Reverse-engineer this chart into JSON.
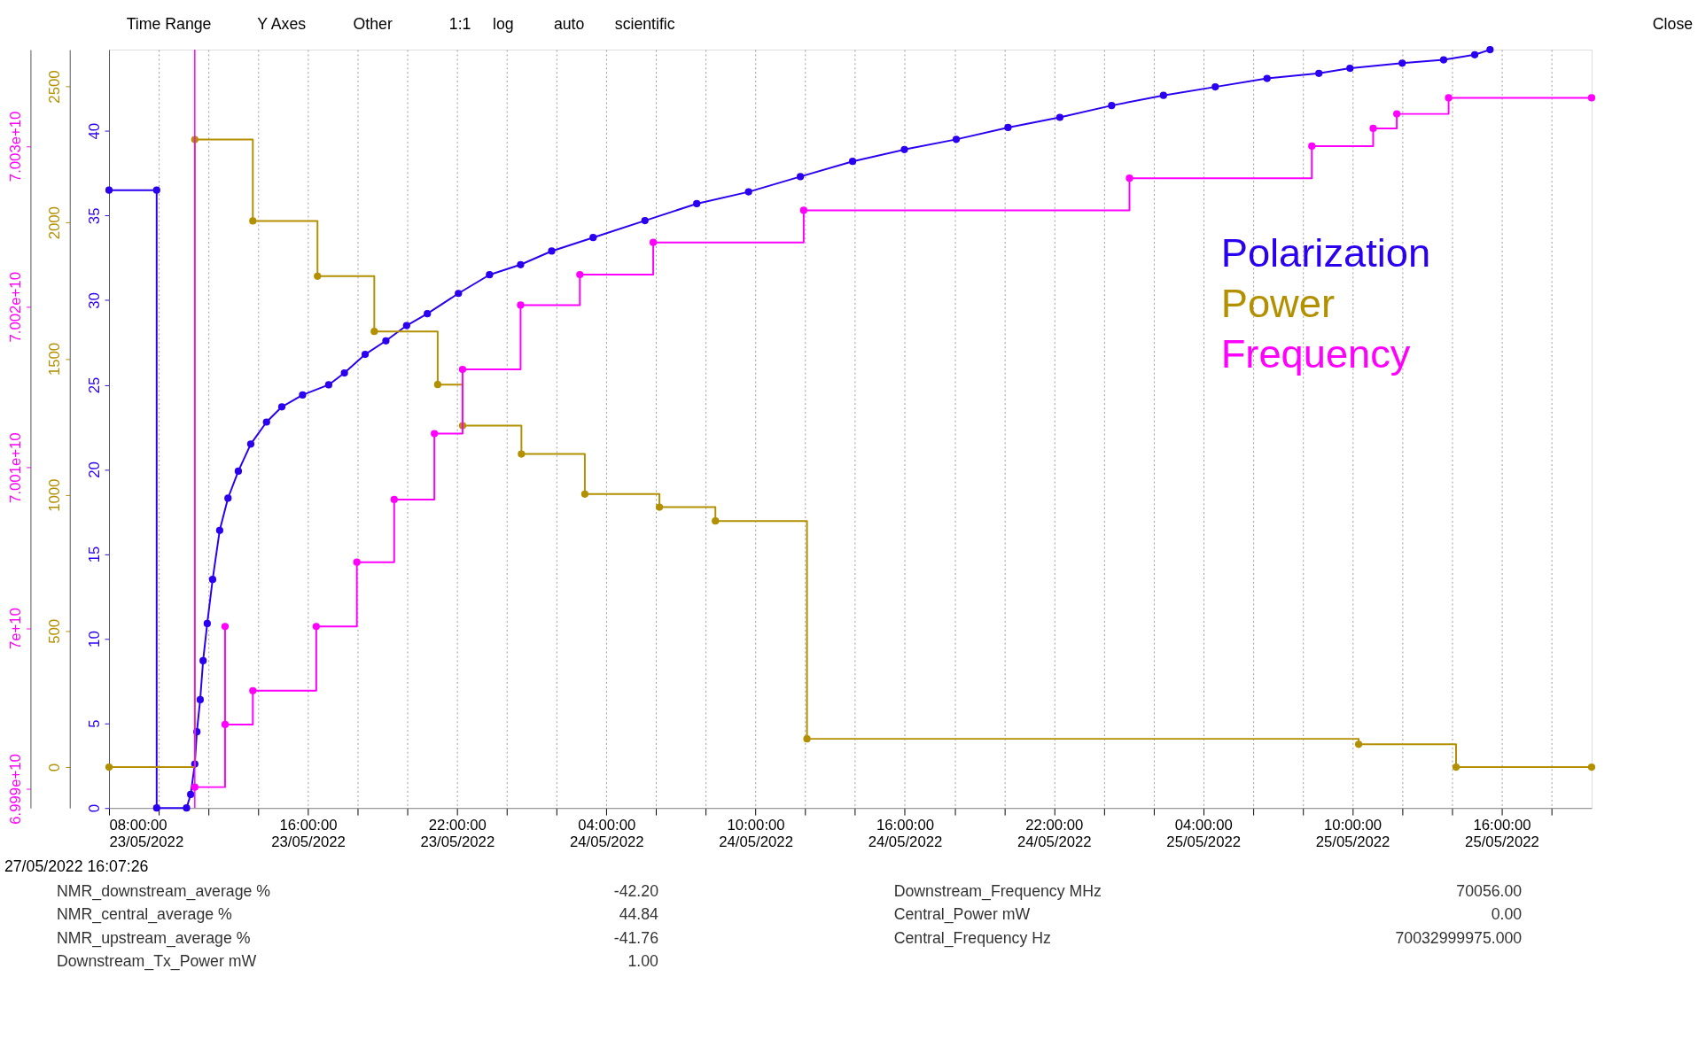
{
  "chart_data": {
    "type": "line",
    "xlim": [
      "2022-05-23T08:00",
      "2022-05-25T19:37"
    ],
    "xticks": [
      {
        "value": "2022-05-23T08:00",
        "label": "08:00:00 23/05/2022"
      },
      {
        "value": "2022-05-23T10:00",
        "label": null
      },
      {
        "value": "2022-05-23T12:00",
        "label": null
      },
      {
        "value": "2022-05-23T14:00",
        "label": null
      },
      {
        "value": "2022-05-23T16:00",
        "label": "16:00:00 23/05/2022"
      },
      {
        "value": "2022-05-23T18:00",
        "label": null
      },
      {
        "value": "2022-05-23T20:00",
        "label": null
      },
      {
        "value": "2022-05-23T22:00",
        "label": "22:00:00 23/05/2022"
      },
      {
        "value": "2022-05-24T00:00",
        "label": null
      },
      {
        "value": "2022-05-24T02:00",
        "label": null
      },
      {
        "value": "2022-05-24T04:00",
        "label": "04:00:00 24/05/2022"
      },
      {
        "value": "2022-05-24T06:00",
        "label": null
      },
      {
        "value": "2022-05-24T08:00",
        "label": null
      },
      {
        "value": "2022-05-24T10:00",
        "label": "10:00:00 24/05/2022"
      },
      {
        "value": "2022-05-24T12:00",
        "label": null
      },
      {
        "value": "2022-05-24T14:00",
        "label": null
      },
      {
        "value": "2022-05-24T16:00",
        "label": "16:00:00 24/05/2022"
      },
      {
        "value": "2022-05-24T18:00",
        "label": null
      },
      {
        "value": "2022-05-24T20:00",
        "label": null
      },
      {
        "value": "2022-05-24T22:00",
        "label": "22:00:00 24/05/2022"
      },
      {
        "value": "2022-05-25T00:00",
        "label": null
      },
      {
        "value": "2022-05-25T02:00",
        "label": null
      },
      {
        "value": "2022-05-25T04:00",
        "label": "04:00:00 25/05/2022"
      },
      {
        "value": "2022-05-25T06:00",
        "label": null
      },
      {
        "value": "2022-05-25T08:00",
        "label": null
      },
      {
        "value": "2022-05-25T10:00",
        "label": "10:00:00 25/05/2022"
      },
      {
        "value": "2022-05-25T12:00",
        "label": null
      },
      {
        "value": "2022-05-25T14:00",
        "label": null
      },
      {
        "value": "2022-05-25T16:00",
        "label": "16:00:00 25/05/2022"
      },
      {
        "value": "2022-05-25T18:00",
        "label": null
      }
    ],
    "ylim": [
      0,
      44.8
    ],
    "yticks": [
      0,
      5,
      10,
      15,
      20,
      25,
      30,
      35,
      40
    ],
    "y2lim": [
      -150,
      2635
    ],
    "y2ticks": [
      0,
      500,
      1000,
      1500,
      2000,
      2500
    ],
    "y3lim": [
      69988800000,
      70036000000
    ],
    "y3ticks": [
      {
        "value": 69990000000,
        "label": "6.999e+10"
      },
      {
        "value": 70000000000,
        "label": "7e+10"
      },
      {
        "value": 70010000000,
        "label": "7.001e+10"
      },
      {
        "value": 70020000000,
        "label": "7.002e+10"
      },
      {
        "value": 70030000000,
        "label": "7.003e+10"
      }
    ],
    "series": [
      {
        "name": "Polarization",
        "color": "#2b00f0",
        "axis": "y",
        "x": [
          "2022-05-23T08:00",
          "2022-05-23T09:55",
          "2022-05-23T09:55",
          "2022-05-23T11:07",
          "2022-05-23T11:17",
          "2022-05-23T11:27",
          "2022-05-23T11:32",
          "2022-05-23T11:40",
          "2022-05-23T11:47",
          "2022-05-23T11:57",
          "2022-05-23T12:10",
          "2022-05-23T12:27",
          "2022-05-23T12:47",
          "2022-05-23T13:12",
          "2022-05-23T13:42",
          "2022-05-23T14:20",
          "2022-05-23T14:57",
          "2022-05-23T15:47",
          "2022-05-23T16:50",
          "2022-05-23T17:28",
          "2022-05-23T18:18",
          "2022-05-23T19:08",
          "2022-05-23T19:58",
          "2022-05-23T20:48",
          "2022-05-23T22:03",
          "2022-05-23T23:18",
          "2022-05-24T00:33",
          "2022-05-24T01:48",
          "2022-05-24T03:28",
          "2022-05-24T05:33",
          "2022-05-24T07:38",
          "2022-05-24T09:43",
          "2022-05-24T11:48",
          "2022-05-24T13:54",
          "2022-05-24T15:59",
          "2022-05-24T18:04",
          "2022-05-24T20:09",
          "2022-05-24T22:14",
          "2022-05-25T00:19",
          "2022-05-25T02:24",
          "2022-05-25T04:29",
          "2022-05-25T06:34",
          "2022-05-25T08:39",
          "2022-05-25T09:54",
          "2022-05-25T12:00",
          "2022-05-25T13:40",
          "2022-05-25T14:55",
          "2022-05-25T15:32"
        ],
        "values": [
          36.5,
          36.5,
          0,
          0,
          0.8,
          2.6,
          4.5,
          6.4,
          8.7,
          10.9,
          13.5,
          16.4,
          18.3,
          19.9,
          21.5,
          22.8,
          23.7,
          24.4,
          25.0,
          25.7,
          26.8,
          27.6,
          28.5,
          29.2,
          30.4,
          31.5,
          32.1,
          32.9,
          33.7,
          34.7,
          35.7,
          36.4,
          37.3,
          38.2,
          38.9,
          39.5,
          40.2,
          40.8,
          41.5,
          42.1,
          42.6,
          43.1,
          43.4,
          43.7,
          44.0,
          44.2,
          44.5,
          44.8
        ]
      },
      {
        "name": "Power",
        "color": "#b39000",
        "type": "step",
        "axis": "y2",
        "x": [
          "2022-05-23T08:00",
          "2022-05-23T11:27",
          "2022-05-23T13:47",
          "2022-05-23T16:23",
          "2022-05-23T18:40",
          "2022-05-23T21:13",
          "2022-05-23T22:13",
          "2022-05-24T00:35",
          "2022-05-24T03:08",
          "2022-05-24T06:08",
          "2022-05-24T08:23",
          "2022-05-24T12:04",
          "2022-05-25T10:15",
          "2022-05-25T14:10",
          "2022-05-25T19:37"
        ],
        "values": [
          0,
          2305,
          2006,
          1803,
          1600,
          1405,
          1254,
          1150,
          1003,
          955,
          904,
          104,
          84,
          0,
          0
        ]
      },
      {
        "name": "Frequency",
        "color": "#ff00ff",
        "type": "step",
        "axis": "y3",
        "x": [
          "2022-05-23T11:27",
          "2022-05-23T12:40",
          "2022-05-23T12:40",
          "2022-05-23T13:47",
          "2022-05-23T16:20",
          "2022-05-23T17:58",
          "2022-05-23T19:28",
          "2022-05-23T21:05",
          "2022-05-23T22:13",
          "2022-05-24T00:33",
          "2022-05-24T02:56",
          "2022-05-24T05:53",
          "2022-05-24T11:56",
          "2022-05-25T01:02",
          "2022-05-25T08:22",
          "2022-05-25T10:50",
          "2022-05-25T11:47",
          "2022-05-25T13:52",
          "2022-05-25T19:37"
        ],
        "values": [
          69990100000,
          70000100000,
          69994000000,
          69996100000,
          70000100000,
          70004100000,
          70008000000,
          70012100000,
          70016100000,
          70020100000,
          70022000000,
          70024000000,
          70026000000,
          70028000000,
          70030000000,
          70031100000,
          70032000000,
          70033000000,
          70033000000
        ]
      }
    ],
    "ref_lines": [
      {
        "axis": "x",
        "value": "2022-05-23T11:27",
        "label": null,
        "color": "#ff00ff"
      }
    ],
    "legend": "right",
    "grid": "x",
    "marker": "circle",
    "line_style": "solid",
    "annotations": [
      "Time Range",
      "Y Axes",
      "Other",
      "1:1",
      "log",
      "auto",
      "scientific",
      "Close",
      "27/05/2022 16:07:26",
      "NMR_downstream_average  %",
      "-42.20",
      "Downstream_Frequency  MHz",
      "70056.00",
      "NMR_central_average  %",
      "44.84",
      "Central_Power  mW",
      "0.00",
      "NMR_upstream_average  %",
      "-41.76",
      "Central_Frequency  Hz",
      "70032999975.000",
      "Downstream_Tx_Power  mW",
      "1.00"
    ]
  }
}
